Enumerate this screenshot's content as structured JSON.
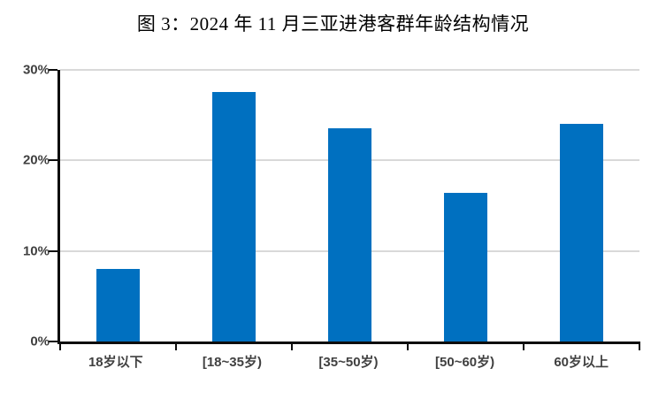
{
  "page": {
    "background": "#ffffff"
  },
  "chart_data": {
    "type": "bar",
    "title": "图 3：2024 年 11 月三亚进港客群年龄结构情况",
    "categories": [
      "18岁以下",
      "[18~35岁)",
      "[35~50岁)",
      "[50~60岁)",
      "60岁以上"
    ],
    "values": [
      8.0,
      27.6,
      23.6,
      16.4,
      24.0
    ],
    "unit": "%",
    "xlabel": "",
    "ylabel": "",
    "ylim": [
      0,
      30
    ],
    "y_tick_values": [
      0,
      10,
      20,
      30
    ],
    "y_ticks": [
      "0%",
      "10%",
      "20%",
      "30%"
    ],
    "grid": "horizontal-light-gray",
    "legend": "none",
    "bar_color": "#0070C0"
  },
  "colors": {
    "bar": "#0070C0",
    "axis": "#0d0d0d",
    "gridline": "#d9d9d9",
    "tick_label": "#404040",
    "title_text": "#000000"
  }
}
